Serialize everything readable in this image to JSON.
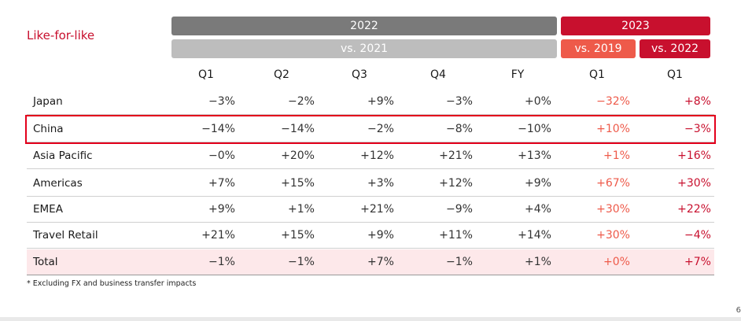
{
  "title": "Like-for-like",
  "header": {
    "year_2022": "2022",
    "vs_2021": "vs. 2021",
    "year_2023": "2023",
    "vs_2019": "vs. 2019",
    "vs_2022": "vs. 2022"
  },
  "columns": [
    "Q1",
    "Q2",
    "Q3",
    "Q4",
    "FY",
    "Q1",
    "Q1"
  ],
  "rows": [
    {
      "label": "Japan",
      "values": [
        "−3%",
        "−2%",
        "+9%",
        "−3%",
        "+0%",
        "−32%",
        "+8%"
      ]
    },
    {
      "label": "China",
      "values": [
        "−14%",
        "−14%",
        "−2%",
        "−8%",
        "−10%",
        "+10%",
        "−3%"
      ]
    },
    {
      "label": "Asia Pacific",
      "values": [
        "−0%",
        "+20%",
        "+12%",
        "+21%",
        "+13%",
        "+1%",
        "+16%"
      ]
    },
    {
      "label": "Americas",
      "values": [
        "+7%",
        "+15%",
        "+3%",
        "+12%",
        "+9%",
        "+67%",
        "+30%"
      ]
    },
    {
      "label": "EMEA",
      "values": [
        "+9%",
        "+1%",
        "+21%",
        "−9%",
        "+4%",
        "+30%",
        "+22%"
      ]
    },
    {
      "label": "Travel Retail",
      "values": [
        "+21%",
        "+15%",
        "+9%",
        "+11%",
        "+14%",
        "+30%",
        "−4%"
      ]
    },
    {
      "label": "Total",
      "values": [
        "−1%",
        "−1%",
        "+7%",
        "−1%",
        "+1%",
        "+0%",
        "+7%"
      ]
    }
  ],
  "footnote": "* Excluding FX and business transfer impacts",
  "page_number": "6",
  "colors": {
    "accent_red": "#c8102e",
    "coral": "#ee5a4a",
    "dark_grey": "#7a7a7a",
    "light_grey": "#bdbdbd",
    "total_row_bg": "#fde8ea",
    "highlight_outline": "#e3001b"
  }
}
